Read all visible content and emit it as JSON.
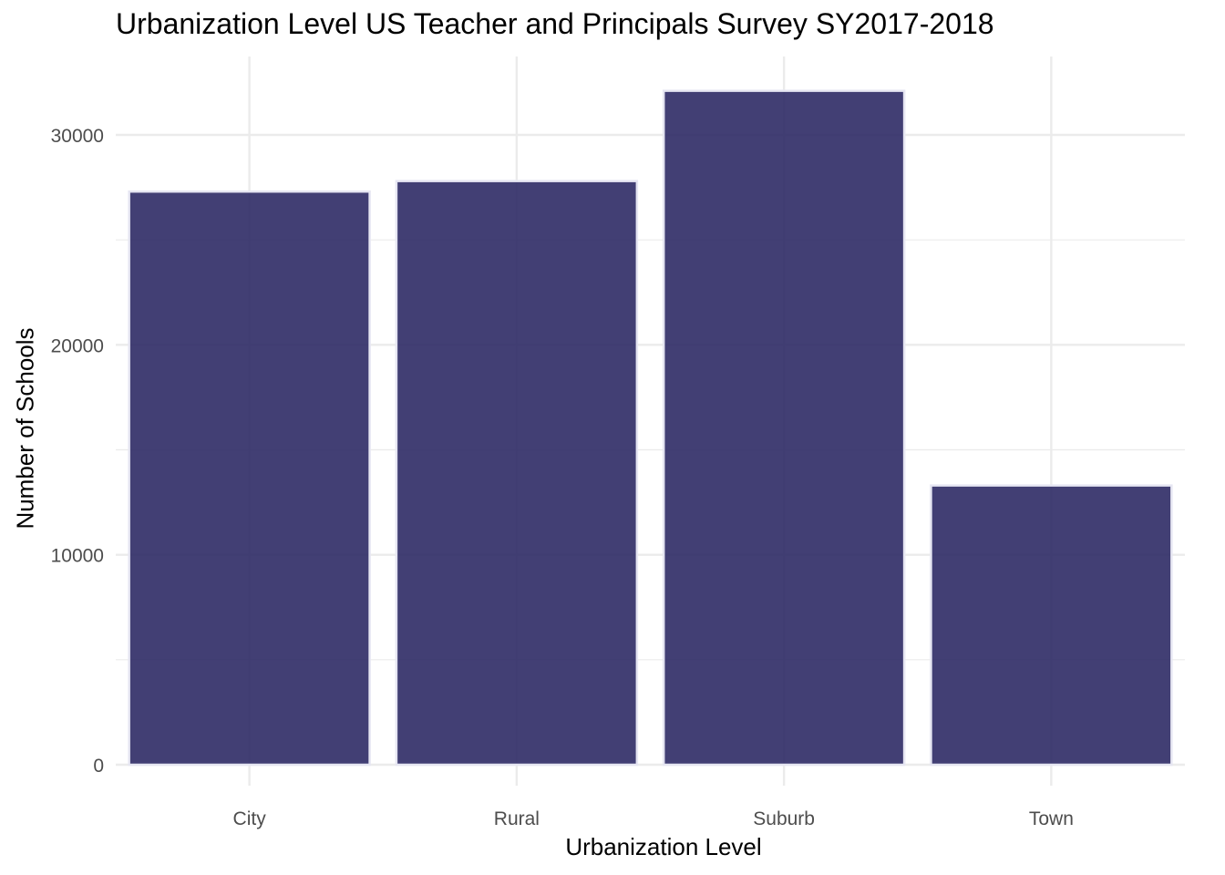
{
  "chart_data": {
    "type": "bar",
    "title": "Urbanization Level US Teacher and Principals Survey SY2017-2018",
    "xlabel": "Urbanization Level",
    "ylabel": "Number of Schools",
    "categories": [
      "City",
      "Rural",
      "Suburb",
      "Town"
    ],
    "values": [
      27300,
      27800,
      32100,
      13300
    ],
    "ylim": [
      0,
      33500
    ],
    "yticks": [
      0,
      10000,
      20000,
      30000
    ],
    "grid": true,
    "legend": "none",
    "colors": {
      "bar_fill": "#2e2a65",
      "bar_outline": "#e6e6f2",
      "grid": "#ebebeb",
      "tick_label": "#4d4d4d"
    }
  }
}
